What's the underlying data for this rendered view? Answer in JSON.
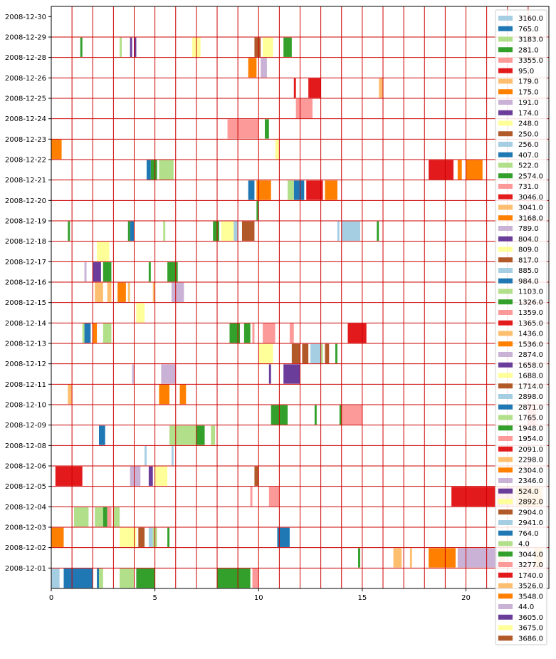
{
  "chart_data": {
    "type": "bar",
    "orientation": "horizontal",
    "stacked": false,
    "title": "",
    "xlabel": "",
    "ylabel": "",
    "xlim": [
      0,
      24
    ],
    "xticks": [
      0,
      5,
      10,
      15,
      20
    ],
    "categories": [
      "2008-12-01",
      "2008-12-02",
      "2008-12-03",
      "2008-12-04",
      "2008-12-05",
      "2008-12-06",
      "2008-12-08",
      "2008-12-09",
      "2008-12-10",
      "2008-12-11",
      "2008-12-12",
      "2008-12-13",
      "2008-12-14",
      "2008-12-15",
      "2008-12-16",
      "2008-12-17",
      "2008-12-18",
      "2008-12-19",
      "2008-12-20",
      "2008-12-21",
      "2008-12-22",
      "2008-12-23",
      "2008-12-24",
      "2008-12-25",
      "2008-12-26",
      "2008-12-28",
      "2008-12-29",
      "2008-12-30"
    ],
    "grid": "red vertical and horizontal lines",
    "grid_color": "#cc0000",
    "legend_position": "right",
    "series": [
      {
        "name": "3160.0",
        "color": "#a6cee3",
        "bars": [
          [
            0,
            0.0,
            0.4
          ]
        ]
      },
      {
        "name": "765.0",
        "color": "#1f78b4",
        "bars": [
          [
            0,
            0.6,
            2.0
          ],
          [
            0,
            2.2,
            2.3
          ]
        ]
      },
      {
        "name": "3183.0",
        "color": "#b2df8a",
        "bars": [
          [
            0,
            2.3,
            2.5
          ],
          [
            0,
            3.3,
            4.0
          ]
        ]
      },
      {
        "name": "281.0",
        "color": "#33a02c",
        "bars": [
          [
            0,
            4.1,
            5.0
          ],
          [
            0,
            8.0,
            9.6
          ]
        ]
      },
      {
        "name": "3355.0",
        "color": "#fb9a99",
        "bars": [
          [
            0,
            9.7,
            10.0
          ]
        ]
      },
      {
        "name": "95.0",
        "color": "#e31a1c",
        "bars": []
      },
      {
        "name": "179.0",
        "color": "#fdbf6f",
        "bars": []
      },
      {
        "name": "175.0",
        "color": "#ff7f00",
        "bars": []
      },
      {
        "name": "191.0",
        "color": "#cab2d6",
        "bars": []
      },
      {
        "name": "174.0",
        "color": "#6a3d9a",
        "bars": []
      },
      {
        "name": "248.0",
        "color": "#ffff99",
        "bars": []
      },
      {
        "name": "250.0",
        "color": "#b15928",
        "bars": []
      },
      {
        "name": "256.0",
        "color": "#a6cee3",
        "bars": []
      },
      {
        "name": "407.0",
        "color": "#1f78b4",
        "bars": [
          [
            20,
            4.6,
            4.8
          ]
        ]
      },
      {
        "name": "522.0",
        "color": "#b2df8a",
        "bars": [
          [
            20,
            5.2,
            5.9
          ]
        ]
      },
      {
        "name": "2574.0",
        "color": "#33a02c",
        "bars": [
          [
            20,
            4.8,
            5.1
          ]
        ]
      },
      {
        "name": "731.0",
        "color": "#fb9a99",
        "bars": []
      },
      {
        "name": "3046.0",
        "color": "#e31a1c",
        "bars": [
          [
            20,
            18.2,
            19.4
          ]
        ]
      },
      {
        "name": "3041.0",
        "color": "#fdbf6f",
        "bars": []
      },
      {
        "name": "3168.0",
        "color": "#ff7f00",
        "bars": [
          [
            20,
            19.6,
            19.8
          ],
          [
            20,
            20.0,
            20.8
          ]
        ]
      },
      {
        "name": "789.0",
        "color": "#cab2d6",
        "bars": []
      },
      {
        "name": "804.0",
        "color": "#6a3d9a",
        "bars": []
      },
      {
        "name": "809.0",
        "color": "#ffff99",
        "bars": []
      },
      {
        "name": "817.0",
        "color": "#b15928",
        "bars": []
      },
      {
        "name": "885.0",
        "color": "#a6cee3",
        "bars": []
      },
      {
        "name": "984.0",
        "color": "#1f78b4",
        "bars": [
          [
            19,
            9.5,
            9.8
          ],
          [
            19,
            11.7,
            12.2
          ]
        ]
      },
      {
        "name": "1103.0",
        "color": "#b2df8a",
        "bars": [
          [
            19,
            11.4,
            11.7
          ]
        ]
      },
      {
        "name": "1326.0",
        "color": "#33a02c",
        "bars": []
      },
      {
        "name": "1359.0",
        "color": "#fb9a99",
        "bars": []
      },
      {
        "name": "1365.0",
        "color": "#e31a1c",
        "bars": [
          [
            19,
            12.3,
            13.1
          ]
        ]
      },
      {
        "name": "1436.0",
        "color": "#fdbf6f",
        "bars": []
      },
      {
        "name": "1536.0",
        "color": "#ff7f00",
        "bars": [
          [
            19,
            9.9,
            10.6
          ],
          [
            19,
            13.2,
            13.8
          ]
        ]
      },
      {
        "name": "2874.0",
        "color": "#cab2d6",
        "bars": []
      },
      {
        "name": "1658.0",
        "color": "#6a3d9a",
        "bars": []
      },
      {
        "name": "1688.0",
        "color": "#ffff99",
        "bars": []
      },
      {
        "name": "1714.0",
        "color": "#b15928",
        "bars": []
      },
      {
        "name": "2898.0",
        "color": "#a6cee3",
        "bars": []
      },
      {
        "name": "2871.0",
        "color": "#1f78b4",
        "bars": []
      },
      {
        "name": "1765.0",
        "color": "#b2df8a",
        "bars": []
      },
      {
        "name": "1948.0",
        "color": "#33a02c",
        "bars": []
      },
      {
        "name": "1954.0",
        "color": "#fb9a99",
        "bars": []
      },
      {
        "name": "2091.0",
        "color": "#e31a1c",
        "bars": []
      },
      {
        "name": "2298.0",
        "color": "#fdbf6f",
        "bars": []
      },
      {
        "name": "2304.0",
        "color": "#ff7f00",
        "bars": []
      },
      {
        "name": "2346.0",
        "color": "#cab2d6",
        "bars": []
      },
      {
        "name": "524.0",
        "color": "#6a3d9a",
        "bars": []
      },
      {
        "name": "2892.0",
        "color": "#ffff99",
        "bars": []
      },
      {
        "name": "2904.0",
        "color": "#b15928",
        "bars": []
      },
      {
        "name": "2941.0",
        "color": "#a6cee3",
        "bars": []
      },
      {
        "name": "764.0",
        "color": "#1f78b4",
        "bars": []
      },
      {
        "name": "4.0",
        "color": "#b2df8a",
        "bars": []
      },
      {
        "name": "3044.0",
        "color": "#33a02c",
        "bars": []
      },
      {
        "name": "3277.0",
        "color": "#fb9a99",
        "bars": []
      },
      {
        "name": "1740.0",
        "color": "#e31a1c",
        "bars": []
      },
      {
        "name": "3526.0",
        "color": "#fdbf6f",
        "bars": []
      },
      {
        "name": "3548.0",
        "color": "#ff7f00",
        "bars": []
      },
      {
        "name": "44.0",
        "color": "#cab2d6",
        "bars": []
      },
      {
        "name": "3605.0",
        "color": "#6a3d9a",
        "bars": []
      },
      {
        "name": "3675.0",
        "color": "#ffff99",
        "bars": []
      },
      {
        "name": "3686.0",
        "color": "#b15928",
        "bars": []
      }
    ],
    "extra_bars": [
      [
        1,
        14.8,
        14.9,
        "#33a02c"
      ],
      [
        1,
        16.5,
        16.9,
        "#fdbf6f"
      ],
      [
        1,
        17.3,
        17.4,
        "#fdbf6f"
      ],
      [
        1,
        18.2,
        19.5,
        "#ff7f00"
      ],
      [
        1,
        19.6,
        21.5,
        "#cab2d6"
      ],
      [
        1,
        21.6,
        21.9,
        "#fdbf6f"
      ],
      [
        1,
        23.3,
        23.7,
        "#fdbf6f"
      ],
      [
        2,
        0.0,
        0.6,
        "#ff7f00"
      ],
      [
        2,
        3.3,
        4.1,
        "#ffff99"
      ],
      [
        2,
        4.2,
        4.5,
        "#b15928"
      ],
      [
        2,
        4.7,
        4.9,
        "#a6cee3"
      ],
      [
        2,
        4.9,
        5.1,
        "#b2df8a"
      ],
      [
        2,
        5.6,
        5.7,
        "#33a02c"
      ],
      [
        2,
        10.9,
        11.5,
        "#1f78b4"
      ],
      [
        3,
        1.1,
        1.8,
        "#b2df8a"
      ],
      [
        3,
        2.1,
        2.5,
        "#b2df8a"
      ],
      [
        3,
        2.5,
        2.7,
        "#33a02c"
      ],
      [
        3,
        2.7,
        2.9,
        "#fb9a99"
      ],
      [
        3,
        3.0,
        3.3,
        "#b2df8a"
      ],
      [
        4,
        9.6,
        9.7,
        "#fb9a99"
      ],
      [
        4,
        10.5,
        11.0,
        "#fb9a99"
      ],
      [
        4,
        19.3,
        21.4,
        "#e31a1c"
      ],
      [
        4,
        21.5,
        22.3,
        "#fb9a99"
      ],
      [
        4,
        22.4,
        23.7,
        "#fdbf6f"
      ],
      [
        5,
        0.2,
        1.5,
        "#e31a1c"
      ],
      [
        5,
        3.8,
        4.3,
        "#cab2d6"
      ],
      [
        5,
        4.7,
        4.9,
        "#6a3d9a"
      ],
      [
        5,
        5.0,
        5.6,
        "#ffff99"
      ],
      [
        5,
        9.8,
        10.0,
        "#b15928"
      ],
      [
        6,
        4.5,
        4.6,
        "#a6cee3"
      ],
      [
        6,
        5.8,
        5.9,
        "#a6cee3"
      ],
      [
        7,
        2.3,
        2.6,
        "#1f78b4"
      ],
      [
        7,
        5.7,
        7.0,
        "#b2df8a"
      ],
      [
        7,
        7.0,
        7.4,
        "#33a02c"
      ],
      [
        7,
        7.7,
        7.9,
        "#b2df8a"
      ],
      [
        8,
        10.6,
        11.4,
        "#33a02c"
      ],
      [
        8,
        12.7,
        12.8,
        "#33a02c"
      ],
      [
        8,
        13.9,
        14.0,
        "#33a02c"
      ],
      [
        8,
        14.0,
        15.0,
        "#fb9a99"
      ],
      [
        8,
        23.0,
        23.4,
        "#fb9a99"
      ],
      [
        9,
        0.8,
        1.0,
        "#fdbf6f"
      ],
      [
        9,
        5.2,
        5.7,
        "#ff7f00"
      ],
      [
        9,
        6.2,
        6.5,
        "#ff7f00"
      ],
      [
        10,
        3.9,
        4.0,
        "#cab2d6"
      ],
      [
        10,
        5.3,
        6.0,
        "#cab2d6"
      ],
      [
        10,
        10.5,
        10.6,
        "#6a3d9a"
      ],
      [
        10,
        11.2,
        12.0,
        "#6a3d9a"
      ],
      [
        11,
        10.0,
        10.7,
        "#ffff99"
      ],
      [
        11,
        11.6,
        12.0,
        "#b15928"
      ],
      [
        11,
        12.1,
        12.4,
        "#b15928"
      ],
      [
        11,
        12.5,
        13.0,
        "#a6cee3"
      ],
      [
        11,
        13.0,
        13.1,
        "#b2df8a"
      ],
      [
        11,
        13.2,
        13.4,
        "#b15928"
      ],
      [
        11,
        13.7,
        13.8,
        "#33a02c"
      ],
      [
        12,
        1.5,
        1.6,
        "#b2df8a"
      ],
      [
        12,
        1.6,
        1.9,
        "#1f78b4"
      ],
      [
        12,
        2.0,
        2.2,
        "#ff7f00"
      ],
      [
        12,
        2.5,
        2.9,
        "#b2df8a"
      ],
      [
        12,
        8.6,
        9.1,
        "#33a02c"
      ],
      [
        12,
        9.3,
        9.6,
        "#33a02c"
      ],
      [
        12,
        9.7,
        9.8,
        "#fb9a99"
      ],
      [
        12,
        10.2,
        10.8,
        "#fb9a99"
      ],
      [
        12,
        11.5,
        11.7,
        "#fb9a99"
      ],
      [
        12,
        14.3,
        15.2,
        "#e31a1c"
      ],
      [
        13,
        4.1,
        4.5,
        "#ffff99"
      ],
      [
        14,
        2.1,
        2.5,
        "#fdbf6f"
      ],
      [
        14,
        2.7,
        2.9,
        "#fdbf6f"
      ],
      [
        14,
        3.2,
        3.6,
        "#ff7f00"
      ],
      [
        14,
        3.7,
        3.8,
        "#fdbf6f"
      ],
      [
        14,
        4.9,
        5.0,
        "#fdbf6f"
      ],
      [
        14,
        5.8,
        6.4,
        "#cab2d6"
      ],
      [
        15,
        1.6,
        1.7,
        "#cab2d6"
      ],
      [
        15,
        2.0,
        2.4,
        "#6a3d9a"
      ],
      [
        15,
        2.5,
        2.9,
        "#33a02c"
      ],
      [
        15,
        4.7,
        4.8,
        "#33a02c"
      ],
      [
        15,
        5.6,
        6.1,
        "#33a02c"
      ],
      [
        16,
        2.2,
        2.8,
        "#ffff99"
      ],
      [
        17,
        0.8,
        0.9,
        "#33a02c"
      ],
      [
        17,
        3.7,
        3.8,
        "#33a02c"
      ],
      [
        17,
        3.8,
        4.0,
        "#1f78b4"
      ],
      [
        17,
        5.4,
        5.5,
        "#b2df8a"
      ],
      [
        17,
        7.8,
        8.1,
        "#33a02c"
      ],
      [
        17,
        8.2,
        8.8,
        "#ffff99"
      ],
      [
        17,
        8.8,
        9.0,
        "#a6cee3"
      ],
      [
        17,
        9.2,
        9.8,
        "#b15928"
      ],
      [
        17,
        13.8,
        13.9,
        "#a6cee3"
      ],
      [
        17,
        14.0,
        14.9,
        "#a6cee3"
      ],
      [
        17,
        15.7,
        15.8,
        "#33a02c"
      ],
      [
        18,
        9.9,
        10.0,
        "#33a02c"
      ],
      [
        21,
        0.0,
        0.5,
        "#ff7f00"
      ],
      [
        21,
        10.8,
        11.0,
        "#ffff99"
      ],
      [
        22,
        8.5,
        9.0,
        "#fb9a99"
      ],
      [
        22,
        9.0,
        10.0,
        "#fb9a99"
      ],
      [
        22,
        10.3,
        10.5,
        "#33a02c"
      ],
      [
        23,
        11.8,
        12.0,
        "#fb9a99"
      ],
      [
        23,
        12.0,
        12.6,
        "#fb9a99"
      ],
      [
        24,
        11.7,
        11.8,
        "#e31a1c"
      ],
      [
        24,
        12.4,
        13.0,
        "#e31a1c"
      ],
      [
        24,
        15.8,
        16.0,
        "#fdbf6f"
      ],
      [
        25,
        9.5,
        9.9,
        "#ff7f00"
      ],
      [
        25,
        10.1,
        10.4,
        "#cab2d6"
      ],
      [
        26,
        1.4,
        1.5,
        "#33a02c"
      ],
      [
        26,
        3.3,
        3.4,
        "#b2df8a"
      ],
      [
        26,
        3.8,
        3.9,
        "#6a3d9a"
      ],
      [
        26,
        4.0,
        4.1,
        "#6a3d9a"
      ],
      [
        26,
        6.8,
        7.2,
        "#ffff99"
      ],
      [
        26,
        9.8,
        10.1,
        "#b15928"
      ],
      [
        26,
        10.2,
        10.7,
        "#ffff99"
      ],
      [
        26,
        11.2,
        11.6,
        "#33a02c"
      ]
    ]
  }
}
